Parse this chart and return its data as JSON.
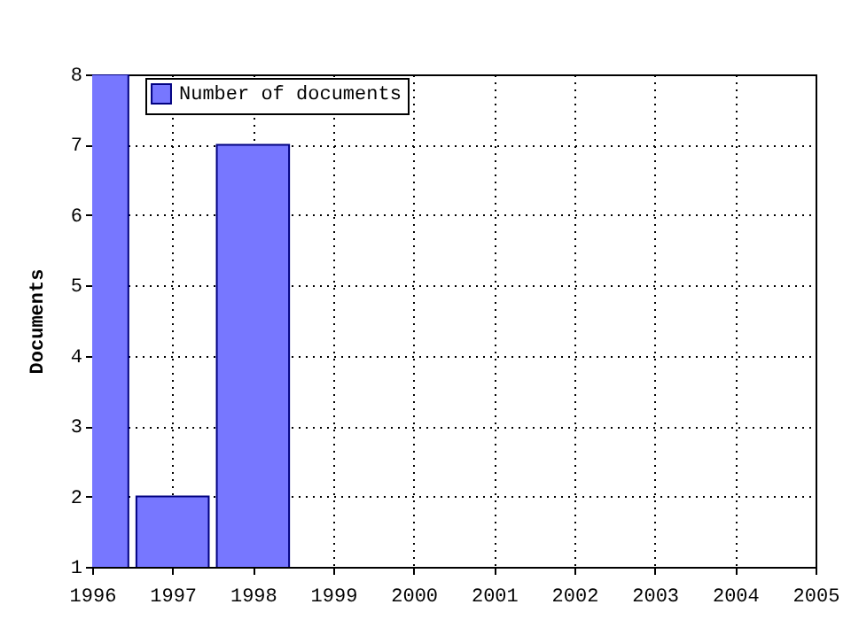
{
  "chart_data": {
    "type": "bar",
    "ylabel": "Documents",
    "x": [
      1996,
      1997,
      1998
    ],
    "series": [
      {
        "name": "Number of documents",
        "color": "#7777ff",
        "values": [
          8,
          2,
          7
        ]
      }
    ],
    "xlim": [
      1996,
      2005
    ],
    "xticks": [
      1996,
      1997,
      1998,
      1999,
      2000,
      2001,
      2002,
      2003,
      2004,
      2005
    ],
    "ylim": [
      1,
      8
    ],
    "yticks": [
      1,
      2,
      3,
      4,
      5,
      6,
      7,
      8
    ],
    "grid": true,
    "legend": "top left"
  }
}
